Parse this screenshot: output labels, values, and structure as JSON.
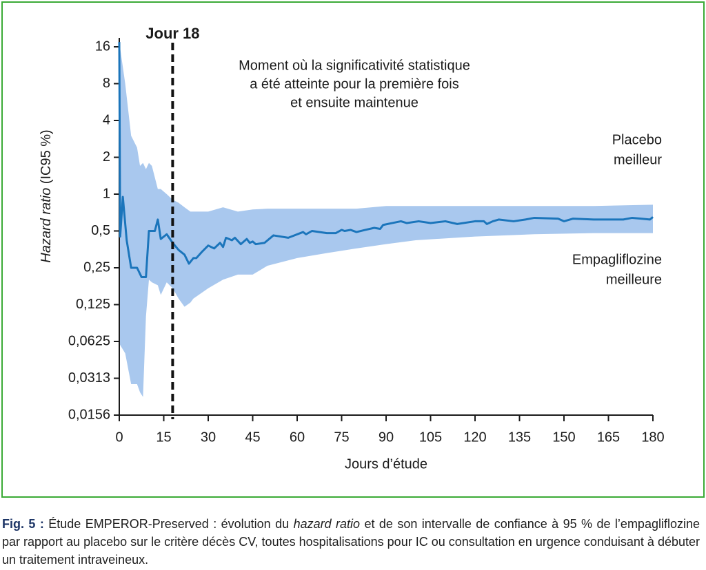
{
  "chart_data": {
    "type": "line",
    "yscale": "log",
    "y_label": {
      "italic": "Hazard ratio",
      "rest": " (IC95 %)"
    },
    "x_label": "Jours d’étude",
    "xlim": [
      0,
      180
    ],
    "xticks": [
      0,
      15,
      30,
      45,
      60,
      75,
      90,
      105,
      120,
      135,
      150,
      165,
      180
    ],
    "ylim": [
      0.015625,
      16
    ],
    "yticks": [
      16,
      8,
      4,
      2,
      1,
      {
        "value": 0.5,
        "label": "0,5"
      },
      {
        "value": 0.25,
        "label": "0,25"
      },
      {
        "value": 0.125,
        "label": "0,125"
      },
      {
        "value": 0.0625,
        "label": "0,0625"
      },
      {
        "value": 0.03125,
        "label": "0,0313"
      },
      {
        "value": 0.015625,
        "label": "0,0156"
      }
    ],
    "series": [
      {
        "color": "#1b75bb",
        "x": [
          0,
          0.3,
          1.2,
          2.5,
          4,
          6,
          7.5,
          9,
          10,
          12,
          13,
          14,
          16,
          18,
          20,
          22,
          23.5,
          25,
          26,
          28,
          30,
          32,
          34,
          35,
          36,
          38,
          39,
          41,
          43,
          44,
          45,
          46,
          49,
          52,
          57,
          62,
          63,
          65,
          70,
          73,
          75,
          76,
          78,
          80,
          83,
          86,
          88,
          89,
          92,
          95,
          97,
          101,
          105,
          110,
          114,
          120,
          123,
          124,
          126,
          128,
          133,
          137,
          140,
          148,
          150,
          153,
          160,
          170,
          173,
          176,
          179,
          180
        ],
        "values": [
          17.5,
          0.45,
          0.95,
          0.42,
          0.25,
          0.25,
          0.21,
          0.21,
          0.5,
          0.5,
          0.62,
          0.43,
          0.47,
          0.4,
          0.35,
          0.32,
          0.27,
          0.3,
          0.3,
          0.34,
          0.38,
          0.36,
          0.4,
          0.37,
          0.44,
          0.42,
          0.44,
          0.39,
          0.43,
          0.4,
          0.41,
          0.39,
          0.4,
          0.46,
          0.44,
          0.49,
          0.47,
          0.5,
          0.48,
          0.48,
          0.51,
          0.5,
          0.51,
          0.49,
          0.51,
          0.53,
          0.52,
          0.56,
          0.58,
          0.6,
          0.58,
          0.6,
          0.58,
          0.6,
          0.57,
          0.6,
          0.6,
          0.57,
          0.6,
          0.62,
          0.6,
          0.62,
          0.64,
          0.63,
          0.6,
          0.63,
          0.62,
          0.62,
          0.64,
          0.63,
          0.62,
          0.65
        ]
      }
    ],
    "band": {
      "color": "#a9c8ee",
      "x": [
        0,
        2,
        4,
        6,
        7,
        8,
        9,
        10,
        11,
        13,
        14,
        16,
        18,
        20,
        22,
        24,
        25,
        30,
        35,
        40,
        45,
        50,
        60,
        70,
        80,
        90,
        100,
        120,
        140,
        160,
        180
      ],
      "upper": [
        17.5,
        8,
        3,
        2.4,
        1.7,
        1.8,
        1.6,
        1.8,
        1.7,
        1.1,
        1.1,
        1.0,
        0.9,
        0.85,
        0.78,
        0.72,
        0.72,
        0.72,
        0.78,
        0.72,
        0.75,
        0.76,
        0.76,
        0.76,
        0.76,
        0.8,
        0.8,
        0.8,
        0.8,
        0.8,
        0.82
      ],
      "lower": [
        0.06,
        0.05,
        0.028,
        0.028,
        0.024,
        0.022,
        0.1,
        0.2,
        0.19,
        0.18,
        0.15,
        0.19,
        0.17,
        0.14,
        0.12,
        0.13,
        0.14,
        0.17,
        0.2,
        0.22,
        0.22,
        0.26,
        0.3,
        0.33,
        0.36,
        0.39,
        0.42,
        0.45,
        0.47,
        0.48,
        0.48
      ]
    },
    "marker": {
      "x": 18,
      "label": "Jour 18"
    },
    "annotation_lines": [
      "Moment où la significativité statistique",
      "a été atteinte pour la première fois",
      "et ensuite maintenue"
    ],
    "upper_note": [
      "Placebo",
      "meilleur"
    ],
    "lower_note": [
      "Empagliflozine",
      "meilleure"
    ]
  },
  "caption": {
    "prefix": "Fig. 5 :",
    "before": " Étude EMPEROR-Preserved : évolution du ",
    "italic": "hazard ratio",
    "after": " et de son intervalle de confiance à 95 % de l’empagliflozine par rapport au placebo sur le critère décès CV, toutes hospitalisations pour IC ou consultation en urgence conduisant à débuter un traitement intraveineux."
  }
}
